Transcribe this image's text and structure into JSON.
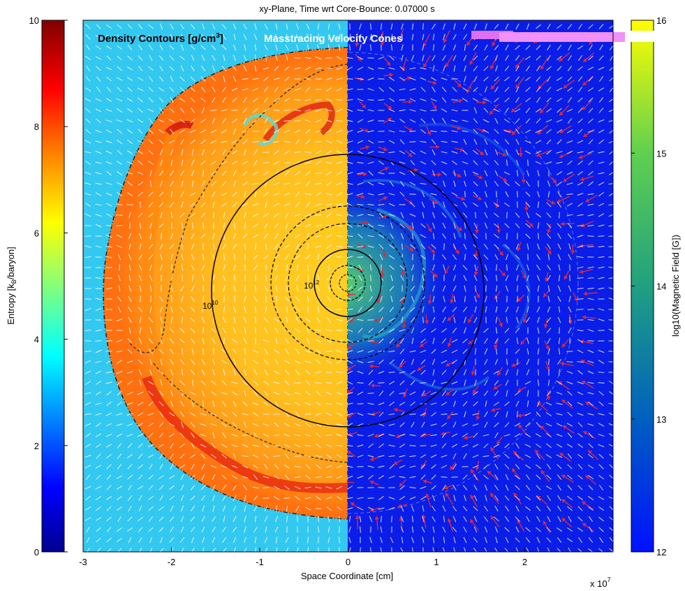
{
  "chart_data": {
    "type": "heatmap",
    "title": "xy-Plane, Time wrt Core-Bounce: 0.07000 s",
    "xlabel": "Space Coordinate [cm]",
    "x_multiplier": "x 10",
    "x_multiplier_exp": "7",
    "xlim": [
      -3,
      3
    ],
    "x_ticks": [
      "-3",
      "-2",
      "-1",
      "0",
      "1",
      "2"
    ],
    "left_panel": {
      "legend_text": "Density Contours [g/cm",
      "legend_sup": "3",
      "legend_close": "]",
      "quantity": "Entropy",
      "colorbar_label": "Entropy [k",
      "colorbar_label_sub": "B",
      "colorbar_label_rest": "/baryon]",
      "colorbar_range": [
        0,
        10
      ],
      "colorbar_ticks": [
        "0",
        "2",
        "4",
        "6",
        "8",
        "10"
      ],
      "colormap": [
        "#00008f",
        "#0000ff",
        "#00ffff",
        "#ffff00",
        "#ff8000",
        "#ff0000",
        "#800000"
      ]
    },
    "right_panel": {
      "legend_text": "Masstracing Velocity Cones",
      "quantity": "log10(Magnetic Field [G])",
      "colorbar_label": "log10(Magnetic Field [G])",
      "colorbar_range": [
        12,
        16
      ],
      "colorbar_ticks": [
        "12",
        "13",
        "14",
        "15",
        "16"
      ],
      "colormap": [
        "#0010ff",
        "#0060c0",
        "#20a080",
        "#60d050",
        "#ffff00"
      ]
    },
    "density_contours": [
      {
        "label": "10",
        "label_sup": "10",
        "level_g_cm3": 10000000000.0,
        "radius_1e7cm": 1.22
      },
      {
        "label": "10",
        "label_sup": "12",
        "level_g_cm3": 1000000000000.0,
        "radius_1e7cm": 0.32
      }
    ],
    "background_left": "#33c8f0",
    "background_right": "#0a1ee8"
  }
}
